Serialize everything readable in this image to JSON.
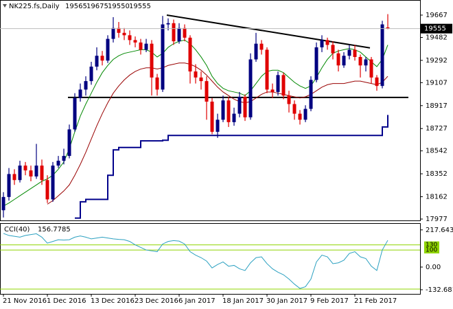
{
  "chart_data": [
    {
      "type": "candlestick",
      "title": "NK225.fs,Daily",
      "categories": [
        "21 Nov 2016",
        null,
        null,
        null,
        null,
        null,
        null,
        null,
        "1 Dec 2016",
        null,
        null,
        null,
        null,
        null,
        null,
        null,
        "13 Dec 2016",
        null,
        null,
        null,
        null,
        null,
        null,
        null,
        "23 Dec 2016",
        null,
        null,
        null,
        null,
        null,
        null,
        null,
        "6 Jan 2017",
        null,
        null,
        null,
        null,
        null,
        null,
        null,
        "18 Jan 2017",
        null,
        null,
        null,
        null,
        null,
        null,
        null,
        "30 Jan 2017",
        null,
        null,
        null,
        null,
        null,
        null,
        null,
        "9 Feb 2017",
        null,
        null,
        null,
        null,
        null,
        null,
        null,
        "21 Feb 2017",
        null,
        null,
        null,
        null,
        null,
        null
      ],
      "open": [
        18050,
        18160,
        18350,
        18300,
        18420,
        18380,
        18330,
        18420,
        18300,
        18140,
        18420,
        18460,
        18500,
        18720,
        18980,
        19050,
        19120,
        19240,
        19330,
        19290,
        19470,
        19560,
        19520,
        19500,
        19460,
        19440,
        19380,
        19430,
        19150,
        19050,
        19590,
        19600,
        19450,
        19560,
        19480,
        19200,
        19150,
        19120,
        18950,
        18700,
        18800,
        18960,
        18780,
        18850,
        18990,
        18820,
        19300,
        19430,
        19380,
        19050,
        19030,
        19170,
        19000,
        18930,
        18850,
        18800,
        18890,
        19130,
        19400,
        19460,
        19420,
        19350,
        19250,
        19330,
        19380,
        19320,
        19250,
        19300,
        19150,
        19080,
        19565
      ],
      "high": [
        18200,
        18400,
        18390,
        18460,
        18450,
        18420,
        18600,
        18470,
        18340,
        18450,
        18500,
        18560,
        18760,
        19020,
        19100,
        19160,
        19280,
        19400,
        19370,
        19500,
        19650,
        19610,
        19560,
        19540,
        19490,
        19470,
        19470,
        19460,
        19180,
        19660,
        19640,
        19630,
        19600,
        19590,
        19500,
        19260,
        19200,
        19160,
        18980,
        18850,
        19000,
        18990,
        18900,
        19030,
        19010,
        19350,
        19520,
        19460,
        19400,
        19100,
        19200,
        19190,
        19040,
        18960,
        18880,
        18920,
        19160,
        19440,
        19500,
        19480,
        19450,
        19380,
        19360,
        19420,
        19420,
        19340,
        19320,
        19320,
        19170,
        19620,
        19675
      ],
      "low": [
        17990,
        18130,
        18260,
        18280,
        18340,
        18290,
        18310,
        18260,
        18110,
        18120,
        18400,
        18430,
        18480,
        18700,
        18950,
        19000,
        19090,
        19210,
        19250,
        19270,
        19440,
        19480,
        19460,
        19420,
        19400,
        19340,
        19360,
        19000,
        19000,
        19030,
        19540,
        19420,
        19430,
        19450,
        19100,
        19100,
        19050,
        18800,
        18680,
        18650,
        18780,
        18740,
        18750,
        18820,
        18790,
        18800,
        19280,
        19340,
        19020,
        18980,
        19000,
        18970,
        18860,
        18800,
        18760,
        18780,
        18870,
        19110,
        19360,
        19380,
        19300,
        19200,
        19230,
        19300,
        19290,
        19150,
        19200,
        19100,
        19040,
        19060,
        19550
      ],
      "close": [
        18160,
        18350,
        18300,
        18420,
        18380,
        18330,
        18420,
        18300,
        18140,
        18420,
        18460,
        18500,
        18720,
        18980,
        19050,
        19120,
        19240,
        19330,
        19290,
        19470,
        19560,
        19520,
        19500,
        19460,
        19440,
        19380,
        19430,
        19150,
        19050,
        19590,
        19600,
        19450,
        19560,
        19480,
        19200,
        19150,
        19120,
        18950,
        18700,
        18800,
        18960,
        18780,
        18850,
        18990,
        18820,
        19300,
        19430,
        19380,
        19050,
        19030,
        19170,
        19000,
        18930,
        18850,
        18800,
        18890,
        19130,
        19400,
        19460,
        19420,
        19350,
        19250,
        19330,
        19380,
        19320,
        19250,
        19300,
        19150,
        19080,
        19590,
        19555
      ],
      "bull_color": "#000080",
      "bear_color": "#e00000",
      "overlays": [
        {
          "color": "#008800",
          "step": false,
          "values": [
            18085,
            18110,
            18140,
            18170,
            18200,
            18230,
            18260,
            18290,
            18310,
            18340,
            18390,
            18450,
            18560,
            18700,
            18830,
            18930,
            19020,
            19110,
            19190,
            19250,
            19300,
            19330,
            19350,
            19360,
            19370,
            19380,
            19380,
            19360,
            19320,
            19350,
            19400,
            19430,
            19450,
            19460,
            19430,
            19380,
            19320,
            19250,
            19160,
            19100,
            19060,
            19040,
            19030,
            19020,
            19000,
            19040,
            19100,
            19160,
            19200,
            19210,
            19210,
            19190,
            19150,
            19110,
            19080,
            19060,
            19080,
            19150,
            19230,
            19300,
            19350,
            19370,
            19380,
            19390,
            19380,
            19360,
            19320,
            19280,
            19240,
            19300,
            19420
          ]
        },
        {
          "color": "#990000",
          "step": false,
          "values": [
            null,
            null,
            null,
            null,
            null,
            null,
            null,
            null,
            18100,
            18130,
            18170,
            18210,
            18260,
            18340,
            18430,
            18530,
            18640,
            18750,
            18850,
            18940,
            19020,
            19080,
            19130,
            19170,
            19200,
            19220,
            19230,
            19230,
            19220,
            19230,
            19250,
            19260,
            19270,
            19270,
            19260,
            19240,
            19210,
            19170,
            19120,
            19070,
            19030,
            19000,
            18970,
            18950,
            18940,
            18950,
            18980,
            19010,
            19030,
            19030,
            19020,
            19010,
            19000,
            18990,
            18980,
            18990,
            19010,
            19040,
            19070,
            19090,
            19100,
            19100,
            19100,
            19110,
            19120,
            19120,
            19110,
            19100,
            19090,
            19110,
            19160
          ]
        },
        {
          "color": "#00008b",
          "step": true,
          "values": [
            null,
            null,
            null,
            null,
            null,
            null,
            null,
            null,
            null,
            null,
            null,
            null,
            null,
            17985,
            18120,
            18140,
            18140,
            18140,
            18140,
            18340,
            18550,
            18570,
            18570,
            18570,
            18570,
            18625,
            18625,
            18625,
            18625,
            18630,
            18670,
            18670,
            18670,
            18670,
            18670,
            18670,
            18670,
            18670,
            18670,
            18670,
            18670,
            18670,
            18670,
            18670,
            18670,
            18670,
            18670,
            18670,
            18670,
            18670,
            18670,
            18670,
            18670,
            18670,
            18670,
            18670,
            18670,
            18670,
            18670,
            18670,
            18670,
            18670,
            18670,
            18670,
            18670,
            18670,
            18670,
            18670,
            18670,
            18740,
            18840
          ]
        }
      ],
      "trendlines": [
        {
          "color": "#000000",
          "x": [
            29.75,
            66.75
          ],
          "values": [
            19667,
            19395
          ]
        },
        {
          "color": "#000000",
          "x": [
            11.75,
            73.75
          ],
          "values": [
            18985,
            18985
          ]
        }
      ],
      "ylim": [
        17960,
        19775
      ],
      "yticks": [
        19667,
        19482,
        19292,
        19107,
        18917,
        18727,
        18542,
        18352,
        18162,
        17977
      ]
    },
    {
      "type": "line",
      "title": "CCI(40)",
      "color": "#2aa0c0",
      "values": [
        197,
        185,
        180,
        175,
        185,
        190,
        195,
        175,
        140,
        150,
        160,
        158,
        160,
        175,
        182,
        175,
        165,
        170,
        175,
        170,
        165,
        162,
        160,
        150,
        130,
        115,
        100,
        95,
        90,
        135,
        150,
        155,
        152,
        135,
        90,
        70,
        55,
        35,
        -5,
        15,
        30,
        5,
        10,
        -10,
        -20,
        25,
        55,
        60,
        20,
        -10,
        -30,
        -45,
        -70,
        -100,
        -125,
        -115,
        -70,
        30,
        70,
        60,
        20,
        25,
        40,
        80,
        90,
        60,
        50,
        5,
        -20,
        100,
        156.7785
      ],
      "levels": [
        130,
        100
      ],
      "level_color": "#8fd400",
      "ylim": [
        -157,
        253
      ],
      "yticks": [
        217.6435,
        {
          "value": 0,
          "label": "0.00"
        },
        -132.681
      ]
    }
  ]
}
